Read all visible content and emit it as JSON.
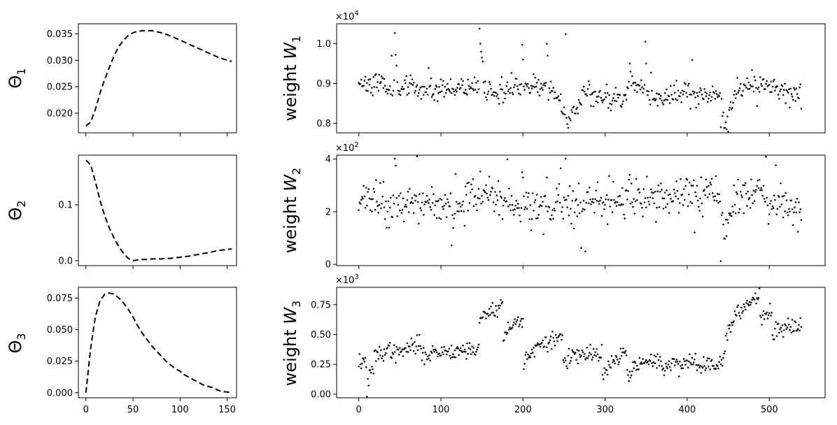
{
  "chart_data": [
    {
      "type": "line",
      "ylabel_main": "Θ",
      "ylabel_sub": "1",
      "xlim": [
        -8,
        160
      ],
      "ylim": [
        0.0163,
        0.0369
      ],
      "xticks": [
        0,
        50,
        100,
        150
      ],
      "yticks": [
        0.02,
        0.025,
        0.03,
        0.035
      ],
      "ytick_labels": [
        "0.020",
        "0.025",
        "0.030",
        "0.035"
      ],
      "show_x_tick_labels": false,
      "color": "#000000",
      "line_style": "dashed",
      "x": [
        0,
        5,
        10,
        15,
        20,
        25,
        30,
        35,
        40,
        45,
        50,
        55,
        60,
        65,
        70,
        75,
        80,
        85,
        90,
        95,
        100,
        105,
        110,
        115,
        120,
        125,
        130,
        135,
        140,
        145,
        150,
        155
      ],
      "y": [
        0.0176,
        0.0183,
        0.0207,
        0.0238,
        0.0264,
        0.0287,
        0.0309,
        0.0326,
        0.0338,
        0.0347,
        0.0352,
        0.0355,
        0.0356,
        0.0356,
        0.0356,
        0.0354,
        0.0352,
        0.0349,
        0.0346,
        0.0342,
        0.0338,
        0.0334,
        0.033,
        0.0326,
        0.0322,
        0.0318,
        0.0314,
        0.031,
        0.0306,
        0.0303,
        0.03,
        0.0298
      ]
    },
    {
      "type": "line",
      "ylabel_main": "Θ",
      "ylabel_sub": "2",
      "xlim": [
        -8,
        160
      ],
      "ylim": [
        -0.009,
        0.189
      ],
      "xticks": [
        0,
        50,
        100,
        150
      ],
      "yticks": [
        0.0,
        0.1
      ],
      "ytick_labels": [
        "0.0",
        "0.1"
      ],
      "show_x_tick_labels": false,
      "color": "#000000",
      "line_style": "dashed",
      "x": [
        0,
        5,
        10,
        15,
        20,
        25,
        30,
        35,
        40,
        45,
        50,
        55,
        60,
        65,
        70,
        75,
        80,
        85,
        90,
        95,
        100,
        105,
        110,
        115,
        120,
        125,
        130,
        135,
        140,
        145,
        150,
        155
      ],
      "y": [
        0.18,
        0.172,
        0.142,
        0.108,
        0.08,
        0.058,
        0.04,
        0.025,
        0.013,
        0.004,
        0.0,
        0.001,
        0.002,
        0.002,
        0.003,
        0.003,
        0.003,
        0.004,
        0.004,
        0.005,
        0.006,
        0.007,
        0.008,
        0.01,
        0.011,
        0.013,
        0.014,
        0.016,
        0.018,
        0.019,
        0.02,
        0.021
      ]
    },
    {
      "type": "line",
      "ylabel_main": "Θ",
      "ylabel_sub": "3",
      "xlim": [
        -8,
        160
      ],
      "ylim": [
        -0.004,
        0.0835
      ],
      "xticks": [
        0,
        50,
        100,
        150
      ],
      "xtick_labels": [
        "0",
        "50",
        "100",
        "150"
      ],
      "yticks": [
        0.0,
        0.025,
        0.05,
        0.075
      ],
      "ytick_labels": [
        "0.000",
        "0.025",
        "0.050",
        "0.075"
      ],
      "show_x_tick_labels": true,
      "color": "#000000",
      "line_style": "dashed",
      "x": [
        0,
        5,
        10,
        15,
        20,
        25,
        30,
        35,
        40,
        45,
        50,
        55,
        60,
        65,
        70,
        75,
        80,
        85,
        90,
        95,
        100,
        105,
        110,
        115,
        120,
        125,
        130,
        135,
        140,
        145,
        150,
        155
      ],
      "y": [
        0.0,
        0.035,
        0.06,
        0.073,
        0.078,
        0.079,
        0.078,
        0.075,
        0.071,
        0.066,
        0.06,
        0.053,
        0.047,
        0.042,
        0.037,
        0.033,
        0.029,
        0.025,
        0.022,
        0.019,
        0.017,
        0.014,
        0.012,
        0.01,
        0.008,
        0.006,
        0.005,
        0.004,
        0.002,
        0.001,
        0.0005,
        0.0
      ]
    },
    {
      "type": "scatter",
      "ylabel_text": "weight ",
      "ylabel_var": "W",
      "ylabel_sub": "1",
      "scale_label": "×10",
      "scale_exp": "4",
      "xlim": [
        -27,
        568
      ],
      "ylim": [
        7.76,
        10.5
      ],
      "xticks": [
        0,
        100,
        200,
        300,
        400,
        500
      ],
      "yticks": [
        8.0,
        9.0,
        10.0
      ],
      "ytick_labels": [
        "0.8",
        "0.9",
        "1.0"
      ],
      "show_x_tick_labels": false,
      "color": "#111111",
      "n_points": 540,
      "baseline": [
        [
          0,
          9.05
        ],
        [
          40,
          8.95
        ],
        [
          60,
          8.9
        ],
        [
          100,
          8.85
        ],
        [
          140,
          8.95
        ],
        [
          150,
          9.0
        ],
        [
          160,
          8.8
        ],
        [
          195,
          8.85
        ],
        [
          210,
          9.0
        ],
        [
          240,
          8.75
        ],
        [
          255,
          8.1
        ],
        [
          275,
          8.8
        ],
        [
          320,
          8.55
        ],
        [
          335,
          9.1
        ],
        [
          360,
          8.6
        ],
        [
          400,
          8.8
        ],
        [
          440,
          8.75
        ],
        [
          445,
          8.0
        ],
        [
          460,
          8.85
        ],
        [
          480,
          9.0
        ],
        [
          540,
          8.7
        ]
      ],
      "spikes": [
        [
          44,
          10.27
        ],
        [
          45,
          9.72
        ],
        [
          46,
          9.45
        ],
        [
          147,
          10.38
        ],
        [
          148,
          10.0
        ],
        [
          149,
          9.8
        ],
        [
          150,
          9.65
        ],
        [
          151,
          9.55
        ],
        [
          199,
          9.97
        ],
        [
          200,
          9.6
        ],
        [
          229,
          10.0
        ],
        [
          230,
          9.7
        ],
        [
          252,
          10.24
        ],
        [
          330,
          9.5
        ],
        [
          331,
          9.3
        ],
        [
          349,
          10.05
        ],
        [
          350,
          9.5
        ],
        [
          441,
          7.9
        ]
      ],
      "noise": 0.13,
      "seed": 11
    },
    {
      "type": "scatter",
      "ylabel_text": "weight ",
      "ylabel_var": "W",
      "ylabel_sub": "2",
      "scale_label": "×10",
      "scale_exp": "2",
      "xlim": [
        -27,
        568
      ],
      "ylim": [
        -0.05,
        4.15
      ],
      "xticks": [
        0,
        100,
        200,
        300,
        400,
        500
      ],
      "yticks": [
        0,
        2,
        4
      ],
      "ytick_labels": [
        "0",
        "2",
        "4"
      ],
      "show_x_tick_labels": false,
      "color": "#111111",
      "n_points": 540,
      "baseline": [
        [
          0,
          2.45
        ],
        [
          40,
          2.25
        ],
        [
          100,
          2.2
        ],
        [
          140,
          2.4
        ],
        [
          150,
          2.9
        ],
        [
          170,
          2.4
        ],
        [
          240,
          2.1
        ],
        [
          270,
          2.3
        ],
        [
          300,
          2.3
        ],
        [
          330,
          2.45
        ],
        [
          360,
          2.5
        ],
        [
          400,
          2.7
        ],
        [
          430,
          2.55
        ],
        [
          440,
          2.5
        ],
        [
          445,
          1.3
        ],
        [
          460,
          2.2
        ],
        [
          490,
          3.0
        ],
        [
          500,
          2.2
        ],
        [
          540,
          2.3
        ]
      ],
      "spikes": [
        [
          44,
          4.02
        ],
        [
          45,
          3.75
        ],
        [
          199,
          3.5
        ],
        [
          200,
          3.3
        ],
        [
          229,
          3.3
        ],
        [
          252,
          4.02
        ],
        [
          330,
          3.4
        ],
        [
          441,
          0.12
        ]
      ],
      "noise": 0.35,
      "seed": 23
    },
    {
      "type": "scatter",
      "ylabel_text": "weight ",
      "ylabel_var": "W",
      "ylabel_sub": "3",
      "scale_label": "×10",
      "scale_exp": "3",
      "xlim": [
        -27,
        568
      ],
      "ylim": [
        -0.03,
        0.895
      ],
      "xticks": [
        0,
        100,
        200,
        300,
        400,
        500
      ],
      "xtick_labels": [
        "0",
        "100",
        "200",
        "300",
        "400",
        "500"
      ],
      "yticks": [
        0.0,
        0.25,
        0.5,
        0.75
      ],
      "ytick_labels": [
        "0.00",
        "0.25",
        "0.50",
        "0.75"
      ],
      "show_x_tick_labels": true,
      "color": "#111111",
      "n_points": 540,
      "segments": [
        [
          0,
          9,
          0.27,
          0.27
        ],
        [
          10,
          18,
          0.0,
          0.22
        ],
        [
          19,
          44,
          0.3,
          0.38
        ],
        [
          45,
          76,
          0.3,
          0.42
        ],
        [
          77,
          146,
          0.32,
          0.38
        ],
        [
          147,
          175,
          0.58,
          0.75
        ],
        [
          176,
          200,
          0.45,
          0.63
        ],
        [
          201,
          248,
          0.25,
          0.48
        ],
        [
          249,
          296,
          0.28,
          0.34
        ],
        [
          297,
          326,
          0.1,
          0.35
        ],
        [
          327,
          368,
          0.15,
          0.3
        ],
        [
          369,
          410,
          0.2,
          0.28
        ],
        [
          411,
          444,
          0.22,
          0.27
        ],
        [
          445,
          488,
          0.35,
          0.85
        ],
        [
          489,
          503,
          0.63,
          0.7
        ],
        [
          504,
          540,
          0.5,
          0.6
        ]
      ],
      "noise": 0.035,
      "seed": 37
    }
  ]
}
